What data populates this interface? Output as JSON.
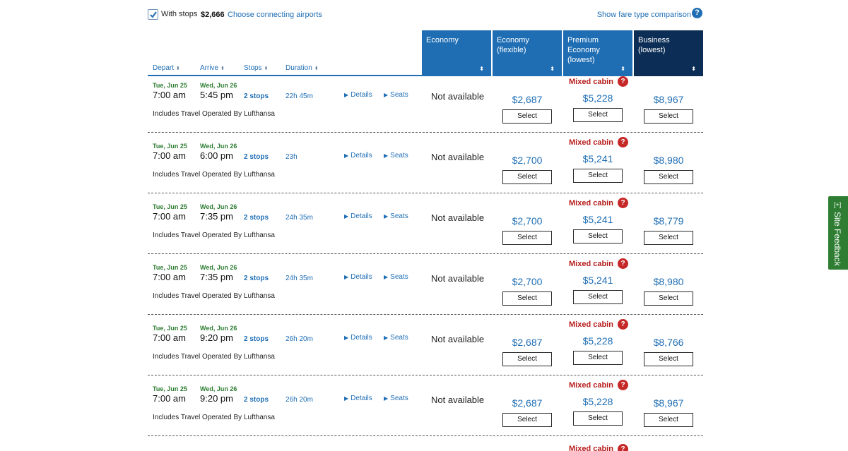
{
  "filters": {
    "with_stops_label": "With stops",
    "with_stops_checked": true,
    "with_stops_price": "$2,666",
    "connecting_link": "Choose connecting airports",
    "fare_comparison_link": "Show fare type comparison",
    "help_icon_text": "?"
  },
  "columns": {
    "depart": "Depart",
    "arrive": "Arrive",
    "stops": "Stops",
    "duration": "Duration",
    "sort_arrow": "⬍"
  },
  "cabins": [
    {
      "label": "Economy",
      "sort_arrow": "⬍"
    },
    {
      "label": "Economy (flexible)",
      "sort_arrow": "⬍"
    },
    {
      "label": "Premium Economy (lowest)",
      "sort_arrow": "⬍"
    },
    {
      "label": "Business (lowest)",
      "sort_arrow": "⬍"
    }
  ],
  "colors": {
    "accent": "#1f6eb4",
    "business_header": "#0c2d55",
    "green_date": "#2e7d32",
    "mixed_cabin": "#b71c1c",
    "feedback_tab": "#2e7d32"
  },
  "flights": [
    {
      "depart_date": "Tue, Jun 25",
      "depart_time": "7:00 am",
      "arrive_date": "Wed, Jun 26",
      "arrive_time": "5:45 pm",
      "stops": "2 stops",
      "duration": "22h 45m",
      "details": "Details",
      "seats": "Seats",
      "operated_by": "Includes Travel Operated By Lufthansa",
      "economy": "Not available",
      "economy_flexible": "$2,687",
      "mixed_cabin": "Mixed cabin",
      "premium": "$5,228",
      "business": "$8,967",
      "select": "Select"
    },
    {
      "depart_date": "Tue, Jun 25",
      "depart_time": "7:00 am",
      "arrive_date": "Wed, Jun 26",
      "arrive_time": "6:00 pm",
      "stops": "2 stops",
      "duration": "23h",
      "details": "Details",
      "seats": "Seats",
      "operated_by": "Includes Travel Operated By Lufthansa",
      "economy": "Not available",
      "economy_flexible": "$2,700",
      "mixed_cabin": "Mixed cabin",
      "premium": "$5,241",
      "business": "$8,980",
      "select": "Select"
    },
    {
      "depart_date": "Tue, Jun 25",
      "depart_time": "7:00 am",
      "arrive_date": "Wed, Jun 26",
      "arrive_time": "7:35 pm",
      "stops": "2 stops",
      "duration": "24h 35m",
      "details": "Details",
      "seats": "Seats",
      "operated_by": "Includes Travel Operated By Lufthansa",
      "economy": "Not available",
      "economy_flexible": "$2,700",
      "mixed_cabin": "Mixed cabin",
      "premium": "$5,241",
      "business": "$8,779",
      "select": "Select"
    },
    {
      "depart_date": "Tue, Jun 25",
      "depart_time": "7:00 am",
      "arrive_date": "Wed, Jun 26",
      "arrive_time": "7:35 pm",
      "stops": "2 stops",
      "duration": "24h 35m",
      "details": "Details",
      "seats": "Seats",
      "operated_by": "Includes Travel Operated By Lufthansa",
      "economy": "Not available",
      "economy_flexible": "$2,700",
      "mixed_cabin": "Mixed cabin",
      "premium": "$5,241",
      "business": "$8,980",
      "select": "Select"
    },
    {
      "depart_date": "Tue, Jun 25",
      "depart_time": "7:00 am",
      "arrive_date": "Wed, Jun 26",
      "arrive_time": "9:20 pm",
      "stops": "2 stops",
      "duration": "26h 20m",
      "details": "Details",
      "seats": "Seats",
      "operated_by": "Includes Travel Operated By Lufthansa",
      "economy": "Not available",
      "economy_flexible": "$2,687",
      "mixed_cabin": "Mixed cabin",
      "premium": "$5,228",
      "business": "$8,766",
      "select": "Select"
    },
    {
      "depart_date": "Tue, Jun 25",
      "depart_time": "7:00 am",
      "arrive_date": "Wed, Jun 26",
      "arrive_time": "9:20 pm",
      "stops": "2 stops",
      "duration": "26h 20m",
      "details": "Details",
      "seats": "Seats",
      "operated_by": "Includes Travel Operated By Lufthansa",
      "economy": "Not available",
      "economy_flexible": "$2,687",
      "mixed_cabin": "Mixed cabin",
      "premium": "$5,228",
      "business": "$8,967",
      "select": "Select"
    }
  ],
  "partial_row": {
    "mixed_cabin": "Mixed cabin"
  },
  "feedback": {
    "label": "Site Feedback",
    "icon_text": "[+]"
  }
}
